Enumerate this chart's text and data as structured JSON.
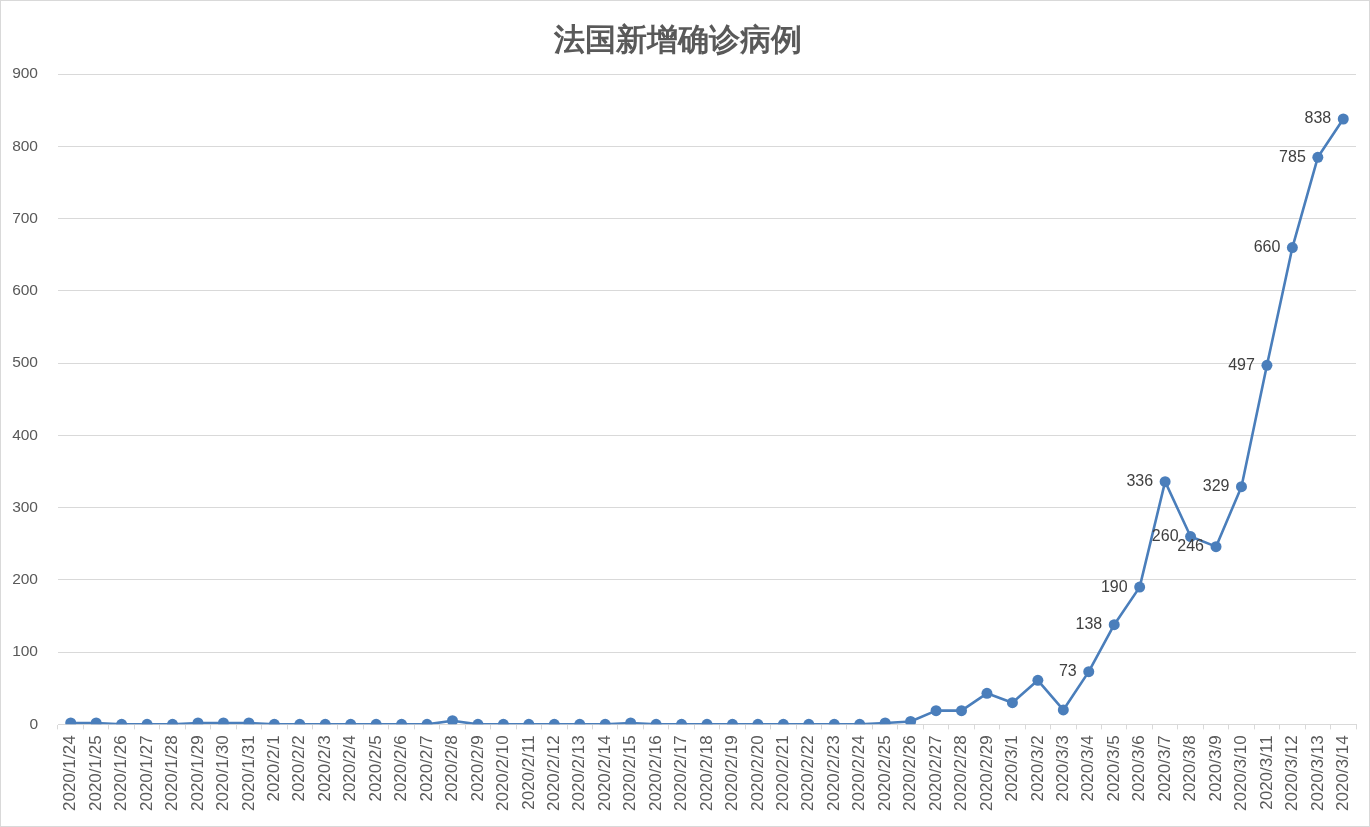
{
  "chart_data": {
    "type": "line",
    "title": "法国新增确诊病例",
    "categories": [
      "2020/1/24",
      "2020/1/25",
      "2020/1/26",
      "2020/1/27",
      "2020/1/28",
      "2020/1/29",
      "2020/1/30",
      "2020/1/31",
      "2020/2/1",
      "2020/2/2",
      "2020/2/3",
      "2020/2/4",
      "2020/2/5",
      "2020/2/6",
      "2020/2/7",
      "2020/2/8",
      "2020/2/9",
      "2020/2/10",
      "2020/2/11",
      "2020/2/12",
      "2020/2/13",
      "2020/2/14",
      "2020/2/15",
      "2020/2/16",
      "2020/2/17",
      "2020/2/18",
      "2020/2/19",
      "2020/2/20",
      "2020/2/21",
      "2020/2/22",
      "2020/2/23",
      "2020/2/24",
      "2020/2/25",
      "2020/2/26",
      "2020/2/27",
      "2020/2/28",
      "2020/2/29",
      "2020/3/1",
      "2020/3/2",
      "2020/3/3",
      "2020/3/4",
      "2020/3/5",
      "2020/3/6",
      "2020/3/7",
      "2020/3/8",
      "2020/3/9",
      "2020/3/10",
      "2020/3/11",
      "2020/3/12",
      "2020/3/13",
      "2020/3/14"
    ],
    "series": [
      {
        "color": "#4a7ebb",
        "values": [
          2,
          2,
          0,
          0,
          0,
          2,
          2,
          2,
          0,
          0,
          0,
          0,
          0,
          0,
          0,
          5,
          0,
          0,
          0,
          0,
          0,
          0,
          2,
          0,
          0,
          0,
          0,
          0,
          0,
          0,
          0,
          0,
          2,
          4,
          19,
          19,
          43,
          30,
          61,
          20,
          73,
          138,
          190,
          336,
          260,
          246,
          329,
          497,
          660,
          785,
          838
        ],
        "value_labels": [
          null,
          null,
          null,
          null,
          null,
          null,
          null,
          null,
          null,
          null,
          null,
          null,
          null,
          null,
          null,
          null,
          null,
          null,
          null,
          null,
          null,
          null,
          null,
          null,
          null,
          null,
          null,
          null,
          null,
          null,
          null,
          null,
          null,
          null,
          null,
          null,
          null,
          null,
          null,
          null,
          "73",
          "138",
          "190",
          "336",
          "260",
          "246",
          "329",
          "497",
          "660",
          "785",
          "838"
        ]
      }
    ],
    "ylim": [
      0,
      900
    ],
    "yticks": [
      0,
      100,
      200,
      300,
      400,
      500,
      600,
      700,
      800,
      900
    ],
    "grid": "y",
    "legend": false,
    "marker": "circle",
    "line_style": "solid"
  }
}
